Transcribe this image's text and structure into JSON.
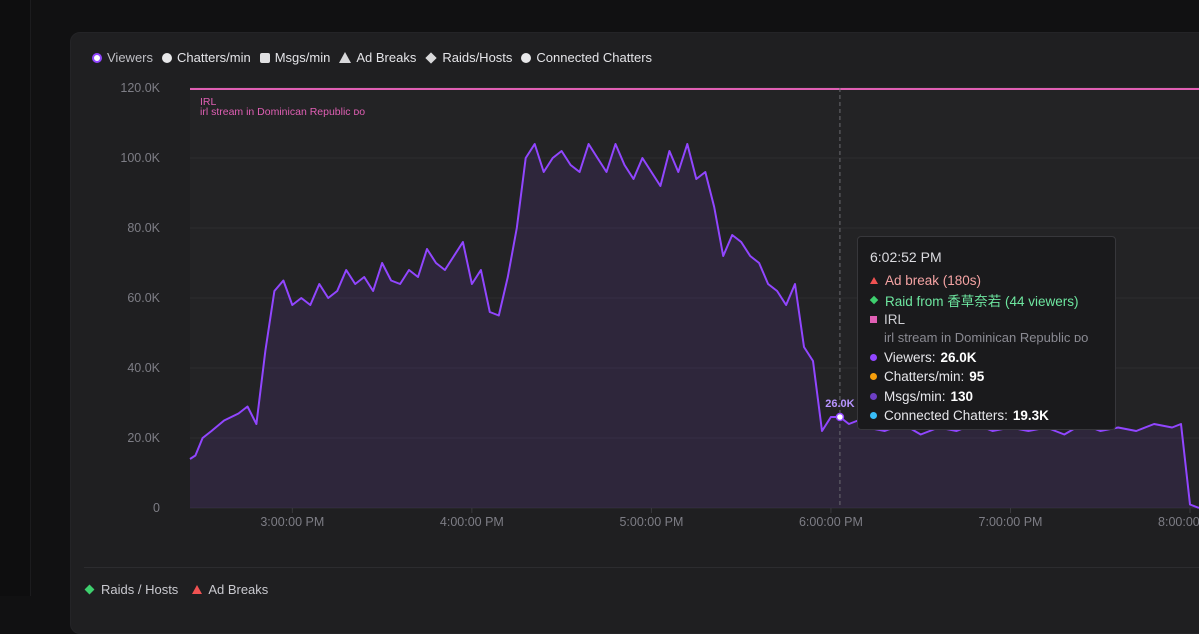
{
  "legend": [
    {
      "label": "Viewers",
      "marker": "circle-active"
    },
    {
      "label": "Chatters/min",
      "marker": "circle"
    },
    {
      "label": "Msgs/min",
      "marker": "square"
    },
    {
      "label": "Ad Breaks",
      "marker": "triangle"
    },
    {
      "label": "Raids/Hosts",
      "marker": "diamond"
    },
    {
      "label": "Connected Chatters",
      "marker": "circle"
    }
  ],
  "colors": {
    "viewers": "#9146ff",
    "category_band": "#e05fb4",
    "ad_break": "#f05252",
    "raid": "#3ecf6e",
    "chatters": "#f59e0b",
    "msgs": "#6d3fc4",
    "connected": "#38bdf8"
  },
  "tooltip": {
    "time": "6:02:52 PM",
    "ad_break": "Ad break (180s)",
    "raid": "Raid from 香草奈若 (44 viewers)",
    "category": "IRL",
    "category_title": "irl stream in Dominican Republic ᴅᴏ",
    "viewers_label": "Viewers:",
    "viewers_value": "26.0K",
    "chatters_label": "Chatters/min:",
    "chatters_value": "95",
    "msgs_label": "Msgs/min:",
    "msgs_value": "130",
    "connected_label": "Connected Chatters:",
    "connected_value": "19.3K"
  },
  "bottom_legend": {
    "raids": "Raids / Hosts",
    "ads": "Ad Breaks"
  },
  "chart_data": {
    "type": "area",
    "category_band": {
      "label": "IRL",
      "title": "irl stream in Dominican Republic ᴅᴏ"
    },
    "hover_label": "26.0K",
    "hover_time": 18.05,
    "ylim": [
      0,
      120000
    ],
    "yticks": [
      "0",
      "20.0K",
      "40.0K",
      "60.0K",
      "80.0K",
      "100.0K",
      "120.0K"
    ],
    "ytick_values": [
      0,
      20000,
      40000,
      60000,
      80000,
      100000,
      120000
    ],
    "xticks": [
      "3:00:00 PM",
      "4:00:00 PM",
      "5:00:00 PM",
      "6:00:00 PM",
      "7:00:00 PM",
      "8:00:00 PM"
    ],
    "xtick_values": [
      15,
      16,
      17,
      18,
      19,
      20
    ],
    "xlim": [
      14.43,
      20.05
    ],
    "series": [
      {
        "name": "Viewers",
        "x": [
          14.43,
          14.46,
          14.5,
          14.55,
          14.62,
          14.7,
          14.75,
          14.8,
          14.85,
          14.9,
          14.95,
          15.0,
          15.05,
          15.1,
          15.15,
          15.2,
          15.25,
          15.3,
          15.35,
          15.4,
          15.45,
          15.5,
          15.55,
          15.6,
          15.65,
          15.7,
          15.75,
          15.8,
          15.85,
          15.9,
          15.95,
          16.0,
          16.05,
          16.1,
          16.15,
          16.2,
          16.25,
          16.3,
          16.35,
          16.4,
          16.45,
          16.5,
          16.55,
          16.6,
          16.65,
          16.7,
          16.75,
          16.8,
          16.85,
          16.9,
          16.95,
          17.0,
          17.05,
          17.1,
          17.15,
          17.2,
          17.25,
          17.3,
          17.35,
          17.4,
          17.45,
          17.5,
          17.55,
          17.6,
          17.65,
          17.7,
          17.75,
          17.8,
          17.85,
          17.9,
          17.95,
          18.0,
          18.05,
          18.1,
          18.15,
          18.2,
          18.3,
          18.4,
          18.5,
          18.6,
          18.7,
          18.8,
          18.9,
          19.0,
          19.1,
          19.2,
          19.3,
          19.4,
          19.5,
          19.6,
          19.7,
          19.8,
          19.9,
          19.95,
          20.0,
          20.05
        ],
        "values": [
          14000,
          15000,
          20000,
          22000,
          25000,
          27000,
          29000,
          24000,
          45000,
          62000,
          65000,
          58000,
          60000,
          58000,
          64000,
          60000,
          62000,
          68000,
          64000,
          66000,
          62000,
          70000,
          65000,
          64000,
          68000,
          66000,
          74000,
          70000,
          68000,
          72000,
          76000,
          64000,
          68000,
          56000,
          55000,
          66000,
          80000,
          100000,
          104000,
          96000,
          100000,
          102000,
          98000,
          96000,
          104000,
          100000,
          96000,
          104000,
          98000,
          94000,
          100000,
          96000,
          92000,
          102000,
          96000,
          104000,
          94000,
          96000,
          86000,
          72000,
          78000,
          76000,
          72000,
          70000,
          64000,
          62000,
          58000,
          64000,
          46000,
          42000,
          22000,
          26000,
          26000,
          24000,
          25000,
          23000,
          22000,
          24000,
          21000,
          23000,
          22000,
          24000,
          22000,
          23000,
          22000,
          23000,
          21000,
          24000,
          22000,
          23000,
          22000,
          24000,
          23000,
          24000,
          1000,
          0
        ]
      }
    ],
    "grid": true,
    "legend_position": "top-left"
  }
}
